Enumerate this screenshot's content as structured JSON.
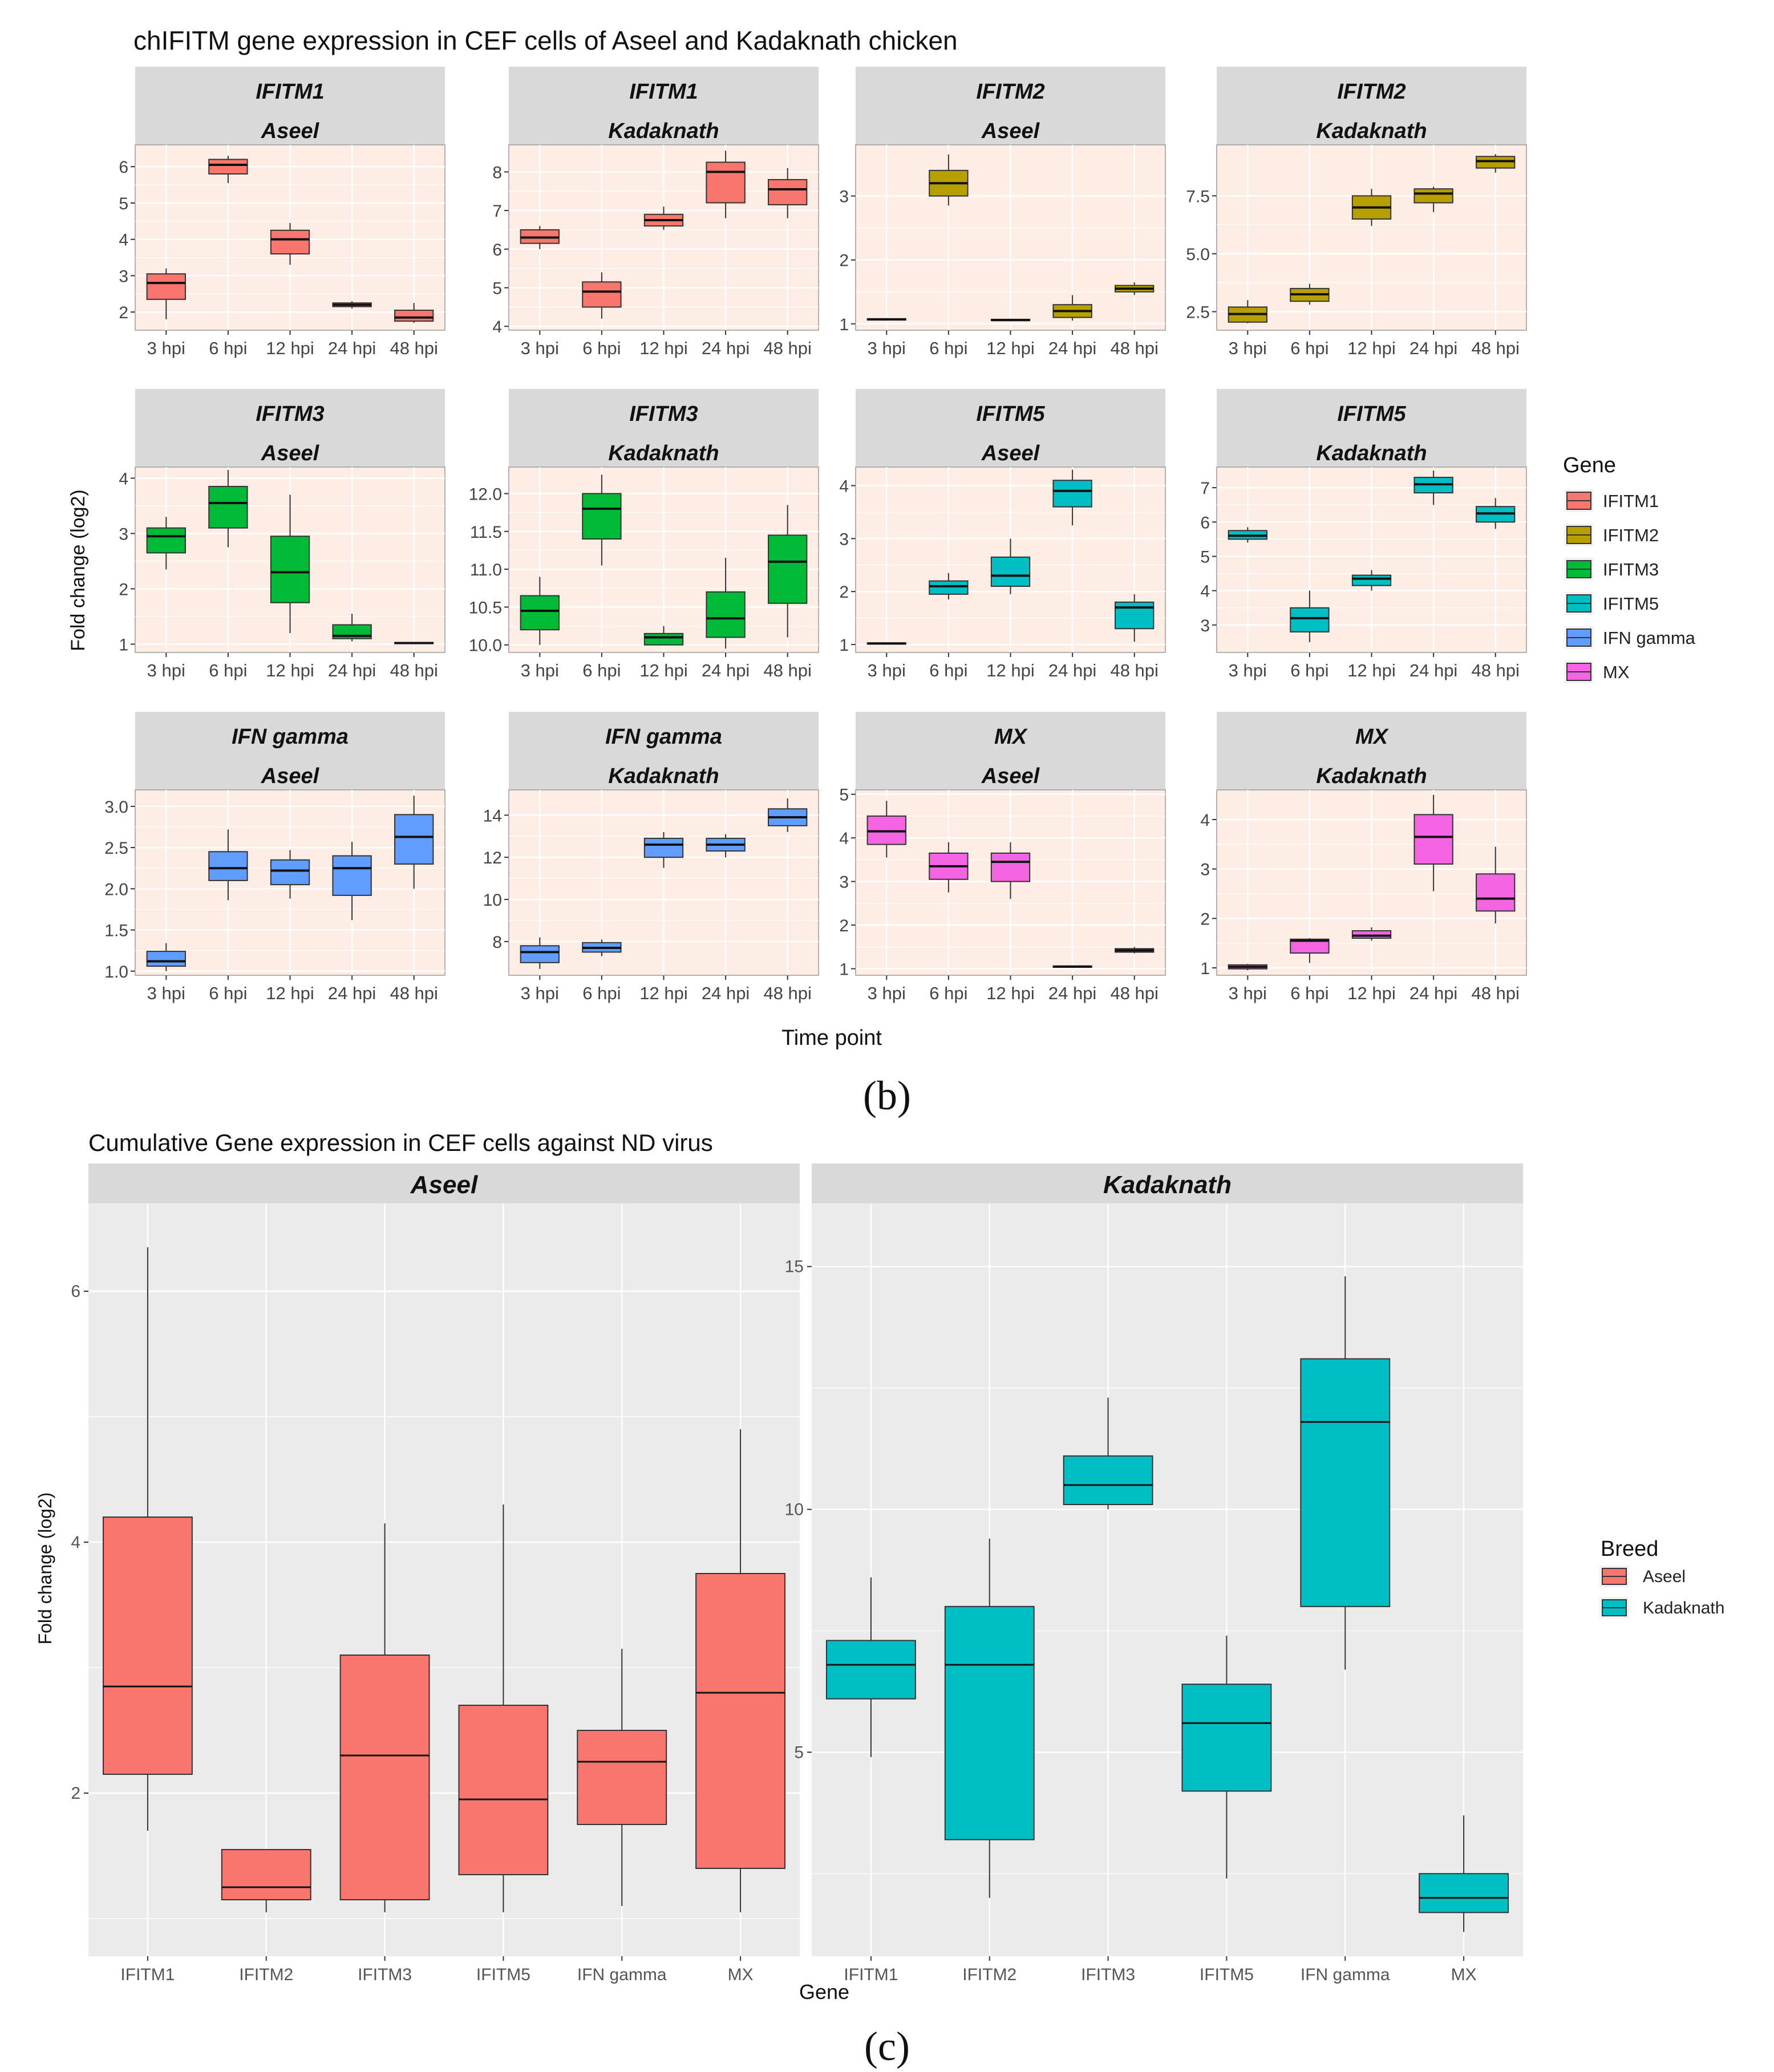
{
  "colors": {
    "gene": {
      "IFITM1": "#F8766D",
      "IFITM2": "#B79F00",
      "IFITM3": "#00BA38",
      "IFITM5": "#00BFC4",
      "IFN gamma": "#619CFF",
      "MX": "#F564E3"
    },
    "breed": {
      "Aseel": "#F8766D",
      "Kadaknath": "#00BFC4"
    },
    "facetStrip": "#D9D9D9",
    "panelBgB": "#FDEDE5",
    "panelBgC": "#EBEBEB",
    "grid": "#FFFFFF"
  },
  "figure_b": {
    "title": "chIFITM gene expression in CEF cells of Aseel and Kadaknath chicken",
    "ylabel": "Fold change (log2)",
    "xlabel": "Time point",
    "caption": "(b)",
    "legend": {
      "title": "Gene",
      "items": [
        "IFITM1",
        "IFITM2",
        "IFITM3",
        "IFITM5",
        "IFN gamma",
        "MX"
      ]
    }
  },
  "figure_c": {
    "title": "Cumulative Gene expression in CEF cells against ND virus",
    "ylabel": "Fold change (log2)",
    "xlabel": "Gene",
    "caption": "(c)",
    "legend": {
      "title": "Breed",
      "items": [
        "Aseel",
        "Kadaknath"
      ]
    }
  },
  "chart_data": [
    {
      "type": "box",
      "title": "chIFITM gene expression in CEF cells of Aseel and Kadaknath chicken",
      "xlabel": "Time point",
      "ylabel": "Fold change (log2)",
      "categories": [
        "3 hpi",
        "6 hpi",
        "12 hpi",
        "24 hpi",
        "48 hpi"
      ],
      "panels": [
        {
          "gene": "IFITM1",
          "breed": "Aseel",
          "ylim": [
            1.5,
            6.6
          ],
          "ticks": [
            2,
            3,
            4,
            5,
            6
          ],
          "boxes": [
            [
              1.8,
              2.35,
              2.8,
              3.05,
              3.2
            ],
            [
              5.55,
              5.8,
              6.05,
              6.2,
              6.3
            ],
            [
              3.3,
              3.6,
              4.0,
              4.25,
              4.45
            ],
            [
              2.1,
              2.15,
              2.2,
              2.25,
              2.3
            ],
            [
              1.7,
              1.75,
              1.85,
              2.05,
              2.25
            ]
          ]
        },
        {
          "gene": "IFITM1",
          "breed": "Kadaknath",
          "ylim": [
            3.9,
            8.7
          ],
          "ticks": [
            4,
            5,
            6,
            7,
            8
          ],
          "boxes": [
            [
              6.0,
              6.15,
              6.3,
              6.5,
              6.6
            ],
            [
              4.2,
              4.5,
              4.9,
              5.15,
              5.4
            ],
            [
              6.5,
              6.6,
              6.75,
              6.9,
              7.1
            ],
            [
              6.8,
              7.2,
              8.0,
              8.25,
              8.55
            ],
            [
              6.8,
              7.15,
              7.55,
              7.8,
              8.1
            ]
          ]
        },
        {
          "gene": "IFITM2",
          "breed": "Aseel",
          "ylim": [
            0.9,
            3.8
          ],
          "ticks": [
            1,
            2,
            3
          ],
          "boxes": [
            [
              1.05,
              1.06,
              1.07,
              1.08,
              1.09
            ],
            [
              2.85,
              3.0,
              3.2,
              3.4,
              3.65
            ],
            [
              1.04,
              1.05,
              1.06,
              1.07,
              1.08
            ],
            [
              1.05,
              1.1,
              1.2,
              1.3,
              1.45
            ],
            [
              1.45,
              1.5,
              1.55,
              1.6,
              1.65
            ]
          ]
        },
        {
          "gene": "IFITM2",
          "breed": "Kadaknath",
          "ylim": [
            1.7,
            9.7
          ],
          "ticks": [
            2.5,
            5.0,
            7.5
          ],
          "boxes": [
            [
              2.0,
              2.05,
              2.4,
              2.7,
              3.0
            ],
            [
              2.8,
              2.95,
              3.25,
              3.5,
              3.7
            ],
            [
              6.2,
              6.5,
              7.0,
              7.5,
              7.8
            ],
            [
              6.8,
              7.2,
              7.6,
              7.8,
              7.9
            ],
            [
              8.5,
              8.7,
              9.0,
              9.2,
              9.3
            ]
          ]
        },
        {
          "gene": "IFITM3",
          "breed": "Aseel",
          "ylim": [
            0.85,
            4.2
          ],
          "ticks": [
            1,
            2,
            3,
            4
          ],
          "boxes": [
            [
              2.35,
              2.65,
              2.95,
              3.1,
              3.3
            ],
            [
              2.75,
              3.1,
              3.55,
              3.85,
              4.15
            ],
            [
              1.2,
              1.75,
              2.3,
              2.95,
              3.7
            ],
            [
              1.05,
              1.1,
              1.15,
              1.35,
              1.55
            ],
            [
              1.0,
              1.01,
              1.02,
              1.03,
              1.04
            ]
          ]
        },
        {
          "gene": "IFITM3",
          "breed": "Kadaknath",
          "ylim": [
            9.9,
            12.35
          ],
          "ticks": [
            10.0,
            10.5,
            11.0,
            11.5,
            12.0
          ],
          "boxes": [
            [
              10.0,
              10.2,
              10.45,
              10.65,
              10.9
            ],
            [
              11.05,
              11.4,
              11.8,
              12.0,
              12.25
            ],
            [
              10.0,
              10.0,
              10.1,
              10.15,
              10.25
            ],
            [
              9.95,
              10.1,
              10.35,
              10.7,
              11.15
            ],
            [
              10.1,
              10.55,
              11.1,
              11.45,
              11.85
            ]
          ]
        },
        {
          "gene": "IFITM5",
          "breed": "Aseel",
          "ylim": [
            0.85,
            4.35
          ],
          "ticks": [
            1,
            2,
            3,
            4
          ],
          "boxes": [
            [
              1.0,
              1.01,
              1.02,
              1.03,
              1.04
            ],
            [
              1.85,
              1.95,
              2.1,
              2.2,
              2.35
            ],
            [
              1.95,
              2.1,
              2.3,
              2.65,
              3.0
            ],
            [
              3.25,
              3.6,
              3.9,
              4.1,
              4.3
            ],
            [
              1.05,
              1.3,
              1.7,
              1.8,
              1.95
            ]
          ]
        },
        {
          "gene": "IFITM5",
          "breed": "Kadaknath",
          "ylim": [
            2.2,
            7.6
          ],
          "ticks": [
            3,
            4,
            5,
            6,
            7
          ],
          "boxes": [
            [
              5.4,
              5.5,
              5.6,
              5.75,
              5.85
            ],
            [
              2.5,
              2.8,
              3.2,
              3.5,
              4.0
            ],
            [
              4.0,
              4.15,
              4.35,
              4.45,
              4.6
            ],
            [
              6.5,
              6.85,
              7.1,
              7.3,
              7.5
            ],
            [
              5.8,
              6.0,
              6.25,
              6.45,
              6.7
            ]
          ]
        },
        {
          "gene": "IFN gamma",
          "breed": "Aseel",
          "ylim": [
            0.95,
            3.2
          ],
          "ticks": [
            1.0,
            1.5,
            2.0,
            2.5,
            3.0
          ],
          "boxes": [
            [
              1.0,
              1.06,
              1.12,
              1.24,
              1.34
            ],
            [
              1.86,
              2.1,
              2.25,
              2.45,
              2.72
            ],
            [
              1.88,
              2.05,
              2.22,
              2.35,
              2.47
            ],
            [
              1.62,
              1.92,
              2.25,
              2.4,
              2.57
            ],
            [
              2.0,
              2.3,
              2.63,
              2.9,
              3.13
            ]
          ]
        },
        {
          "gene": "IFN gamma",
          "breed": "Kadaknath",
          "ylim": [
            6.4,
            15.2
          ],
          "ticks": [
            8,
            10,
            12,
            14
          ],
          "boxes": [
            [
              6.7,
              7.0,
              7.5,
              7.8,
              8.2
            ],
            [
              7.3,
              7.5,
              7.7,
              7.95,
              8.1
            ],
            [
              11.5,
              12.0,
              12.6,
              12.9,
              13.2
            ],
            [
              12.0,
              12.3,
              12.6,
              12.9,
              13.1
            ],
            [
              13.2,
              13.5,
              13.9,
              14.3,
              14.8
            ]
          ]
        },
        {
          "gene": "MX",
          "breed": "Aseel",
          "ylim": [
            0.85,
            5.1
          ],
          "ticks": [
            1,
            2,
            3,
            4,
            5
          ],
          "boxes": [
            [
              3.55,
              3.85,
              4.15,
              4.5,
              4.85
            ],
            [
              2.75,
              3.05,
              3.35,
              3.65,
              3.9
            ],
            [
              2.6,
              3.0,
              3.45,
              3.65,
              3.9
            ],
            [
              1.03,
              1.04,
              1.05,
              1.06,
              1.07
            ],
            [
              1.35,
              1.38,
              1.42,
              1.46,
              1.5
            ]
          ]
        },
        {
          "gene": "MX",
          "breed": "Kadaknath",
          "ylim": [
            0.85,
            4.6
          ],
          "ticks": [
            1,
            2,
            3,
            4
          ],
          "boxes": [
            [
              0.95,
              0.98,
              1.02,
              1.06,
              1.08
            ],
            [
              1.1,
              1.3,
              1.55,
              1.58,
              1.6
            ],
            [
              1.55,
              1.6,
              1.65,
              1.75,
              1.82
            ],
            [
              2.55,
              3.1,
              3.65,
              4.1,
              4.5
            ],
            [
              1.9,
              2.15,
              2.4,
              2.9,
              3.45
            ]
          ]
        }
      ]
    },
    {
      "type": "box",
      "title": "Cumulative Gene expression in CEF cells against ND virus",
      "xlabel": "Gene",
      "ylabel": "Fold change (log2)",
      "categories": [
        "IFITM1",
        "IFITM2",
        "IFITM3",
        "IFITM5",
        "IFN gamma",
        "MX"
      ],
      "panels": [
        {
          "breed": "Aseel",
          "ylim": [
            0.7,
            6.7
          ],
          "ticks": [
            2,
            4,
            6
          ],
          "boxes": [
            [
              1.7,
              2.15,
              2.85,
              4.2,
              6.35
            ],
            [
              1.05,
              1.15,
              1.25,
              1.55,
              1.55
            ],
            [
              1.05,
              1.15,
              2.3,
              3.1,
              4.15
            ],
            [
              1.05,
              1.35,
              1.95,
              2.7,
              4.3
            ],
            [
              1.1,
              1.75,
              2.25,
              2.5,
              3.15
            ],
            [
              1.05,
              1.4,
              2.8,
              3.75,
              4.9
            ]
          ]
        },
        {
          "breed": "Kadaknath",
          "ylim": [
            0.8,
            16.3
          ],
          "ticks": [
            5,
            10,
            15
          ],
          "boxes": [
            [
              4.9,
              6.1,
              6.8,
              7.3,
              8.6
            ],
            [
              2.0,
              3.2,
              6.8,
              8.0,
              9.4
            ],
            [
              10.0,
              10.1,
              10.5,
              11.1,
              12.3
            ],
            [
              2.4,
              4.2,
              5.6,
              6.4,
              7.4
            ],
            [
              6.7,
              8.0,
              11.8,
              13.1,
              14.8
            ],
            [
              1.3,
              1.7,
              2.0,
              2.5,
              3.7
            ]
          ]
        }
      ]
    }
  ]
}
